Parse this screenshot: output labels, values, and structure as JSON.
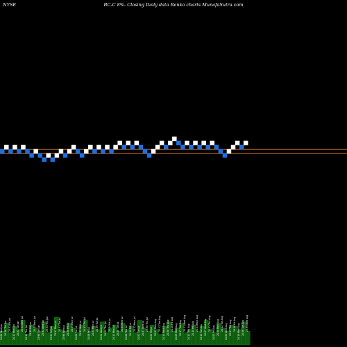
{
  "header": {
    "exchange": "NYSE",
    "title": "BC-C 8%-  Closing Daily data  Renko  charts MunafaSutra.com"
  },
  "colors": {
    "background": "#000000",
    "up_brick": "#ffffff",
    "down_brick": "#1e6fe0",
    "reference_line": "#b5651d",
    "volume": "#0e5c0e",
    "volume_edge": "#1f8f1f",
    "volume_label": "#ffffff"
  },
  "chart_data": {
    "type": "renko",
    "title": "",
    "xlabel": "",
    "ylabel": "",
    "brick_size_levels": 1,
    "bricks": [
      {
        "level": 0,
        "dir": "down"
      },
      {
        "level": 1,
        "dir": "up"
      },
      {
        "level": 0,
        "dir": "down"
      },
      {
        "level": 1,
        "dir": "up"
      },
      {
        "level": 0,
        "dir": "down"
      },
      {
        "level": 1,
        "dir": "up"
      },
      {
        "level": 0,
        "dir": "down"
      },
      {
        "level": -1,
        "dir": "down"
      },
      {
        "level": 0,
        "dir": "up"
      },
      {
        "level": -1,
        "dir": "down"
      },
      {
        "level": -2,
        "dir": "down"
      },
      {
        "level": -1,
        "dir": "up"
      },
      {
        "level": -2,
        "dir": "down"
      },
      {
        "level": -1,
        "dir": "up"
      },
      {
        "level": 0,
        "dir": "up"
      },
      {
        "level": -1,
        "dir": "down"
      },
      {
        "level": 0,
        "dir": "up"
      },
      {
        "level": 1,
        "dir": "up"
      },
      {
        "level": 0,
        "dir": "down"
      },
      {
        "level": -1,
        "dir": "down"
      },
      {
        "level": 0,
        "dir": "up"
      },
      {
        "level": 1,
        "dir": "up"
      },
      {
        "level": 0,
        "dir": "down"
      },
      {
        "level": 1,
        "dir": "up"
      },
      {
        "level": 0,
        "dir": "down"
      },
      {
        "level": 1,
        "dir": "up"
      },
      {
        "level": 0,
        "dir": "down"
      },
      {
        "level": 1,
        "dir": "up"
      },
      {
        "level": 2,
        "dir": "up"
      },
      {
        "level": 1,
        "dir": "down"
      },
      {
        "level": 2,
        "dir": "up"
      },
      {
        "level": 1,
        "dir": "down"
      },
      {
        "level": 2,
        "dir": "up"
      },
      {
        "level": 1,
        "dir": "down"
      },
      {
        "level": 0,
        "dir": "down"
      },
      {
        "level": -1,
        "dir": "down"
      },
      {
        "level": 0,
        "dir": "up"
      },
      {
        "level": 1,
        "dir": "up"
      },
      {
        "level": 2,
        "dir": "up"
      },
      {
        "level": 1,
        "dir": "down"
      },
      {
        "level": 2,
        "dir": "up"
      },
      {
        "level": 3,
        "dir": "up"
      },
      {
        "level": 2,
        "dir": "down"
      },
      {
        "level": 1,
        "dir": "down"
      },
      {
        "level": 2,
        "dir": "up"
      },
      {
        "level": 1,
        "dir": "down"
      },
      {
        "level": 2,
        "dir": "up"
      },
      {
        "level": 1,
        "dir": "down"
      },
      {
        "level": 2,
        "dir": "up"
      },
      {
        "level": 1,
        "dir": "down"
      },
      {
        "level": 2,
        "dir": "up"
      },
      {
        "level": 1,
        "dir": "down"
      },
      {
        "level": 0,
        "dir": "down"
      },
      {
        "level": -1,
        "dir": "down"
      },
      {
        "level": 0,
        "dir": "up"
      },
      {
        "level": 1,
        "dir": "up"
      },
      {
        "level": 2,
        "dir": "up"
      },
      {
        "level": 1,
        "dir": "down"
      },
      {
        "level": 2,
        "dir": "up"
      }
    ],
    "reference_lines": [
      0.45,
      -0.55
    ],
    "volume": [
      9,
      14,
      8,
      12,
      10,
      16,
      7,
      13,
      11,
      9,
      15,
      8,
      12,
      18,
      10,
      9,
      14,
      11,
      8,
      13,
      16,
      9,
      12,
      10,
      15,
      8,
      11,
      13,
      9,
      14,
      10,
      12,
      8,
      16,
      11,
      9,
      13,
      10,
      7,
      12,
      15,
      9,
      11,
      14,
      8,
      10,
      13,
      9,
      12,
      16,
      10,
      8,
      14,
      11,
      9,
      13,
      12,
      10,
      15,
      9
    ],
    "date_labels": [
      "24.06 Wed Jun",
      "24.16 Thu Jun",
      "24.01 Fri Jun",
      "24.11 Mon Jun",
      "24.02 Tue Jun",
      "24.14 Wed Jun",
      "24.11 Thu Jun",
      "23.99 Fri Jun",
      "24.05 Mon Jun",
      "23.98 Tue Jun",
      "23.92 Wed Jun",
      "23.94 Thu Jun",
      "23.91 Fri Jun",
      "23.97 Mon Jul",
      "24.01 Tue Jul",
      "23.96 Wed Jul",
      "24.08 Fri Jul",
      "24.09 Mon Jul",
      "24.08 Tue Jul",
      "23.93 Wed Jul",
      "24.03 Thu Jul",
      "24.06 Fri Jul",
      "24.03 Mon Jul",
      "24.09 Tue Jul",
      "24.04 Wed Jul",
      "24.05 Thu Jul",
      "24.04 Fri Jul",
      "24.11 Mon Jul",
      "24.08 Tue Jul",
      "24.05 Wed Jul",
      "24.06 Thu Jul",
      "24.10 Fri Jul",
      "24.12 Mon Jul",
      "24.02 Tue Jul",
      "24.07 Wed Jul",
      "23.98 Thu Jul",
      "24.00 Fri Jul",
      "24.07 Mon Aug",
      "24.12 Tue Aug",
      "24.15 Wed Aug",
      "24.08 Thu Aug",
      "24.10 Fri Aug",
      "24.09 Mon Aug",
      "24.17 Tue Aug",
      "24.11 Wed Aug",
      "24.12 Thu Aug",
      "24.14 Fri Aug",
      "24.11 Mon Aug",
      "24.13 Tue Aug",
      "24.07 Wed Aug",
      "24.01 Thu Aug",
      "24.05 Fri Aug",
      "24.08 Mon Aug",
      "24.12 Tue Aug",
      "24.04 Wed Aug",
      "23.97 Thu Aug",
      "24.06 Fri Aug",
      "24.10 Mon Aug",
      "24.06 Tue Aug",
      "23.99 Wed Aug"
    ]
  }
}
